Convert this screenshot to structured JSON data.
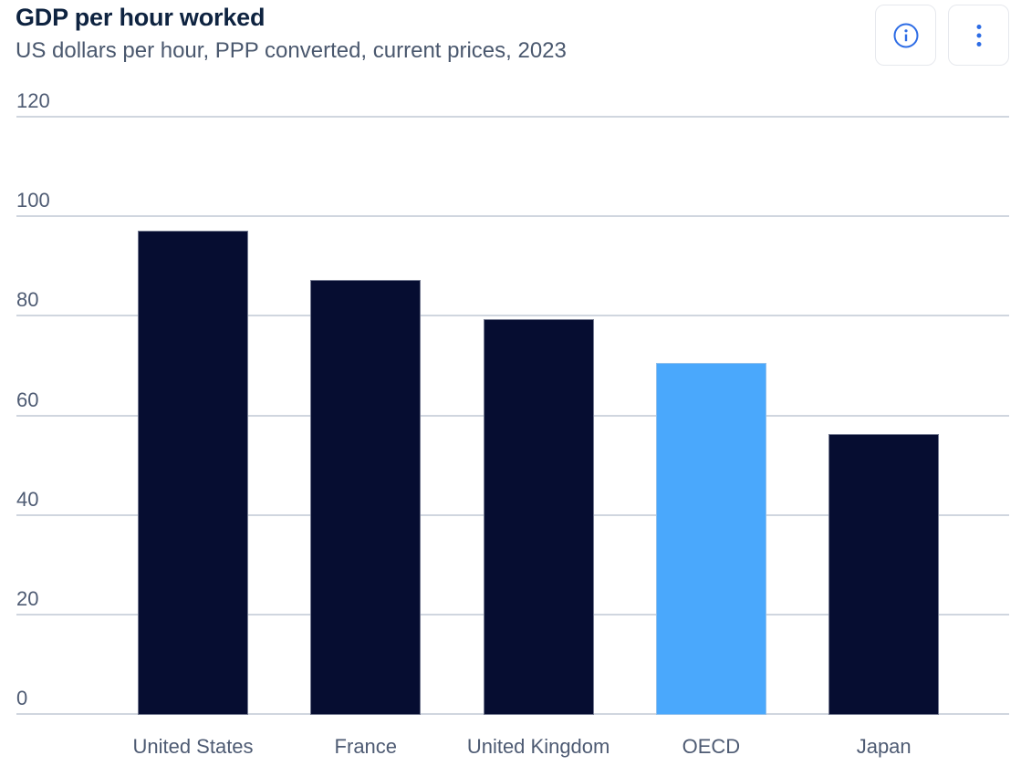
{
  "header": {
    "icon_color": "#2d6ce5",
    "button_border": "#e6e8ed",
    "actions": [
      {
        "name": "info",
        "icon": "info-icon"
      },
      {
        "name": "more-options",
        "icon": "kebab-menu-icon"
      }
    ]
  },
  "chart_data": {
    "type": "bar",
    "title": "GDP per hour worked",
    "subtitle": "US dollars per hour, PPP converted, current prices, 2023",
    "categories": [
      "United States",
      "France",
      "United Kingdom",
      "OECD",
      "Japan"
    ],
    "values": [
      97.1,
      87.2,
      79.3,
      70.6,
      56.3
    ],
    "highlighted_category": "OECD",
    "ylim": [
      0,
      120
    ],
    "yticks": [
      0,
      20,
      40,
      60,
      80,
      100,
      120
    ],
    "grid": true,
    "legend": false,
    "colors": {
      "bar": "#060d31",
      "highlight": "#4aa8fc",
      "grid": "#d0d6df",
      "tick_label": "#4e5b73",
      "category_label": "#4e5b73",
      "title": "#0e2340",
      "subtitle": "#4a586e"
    }
  }
}
